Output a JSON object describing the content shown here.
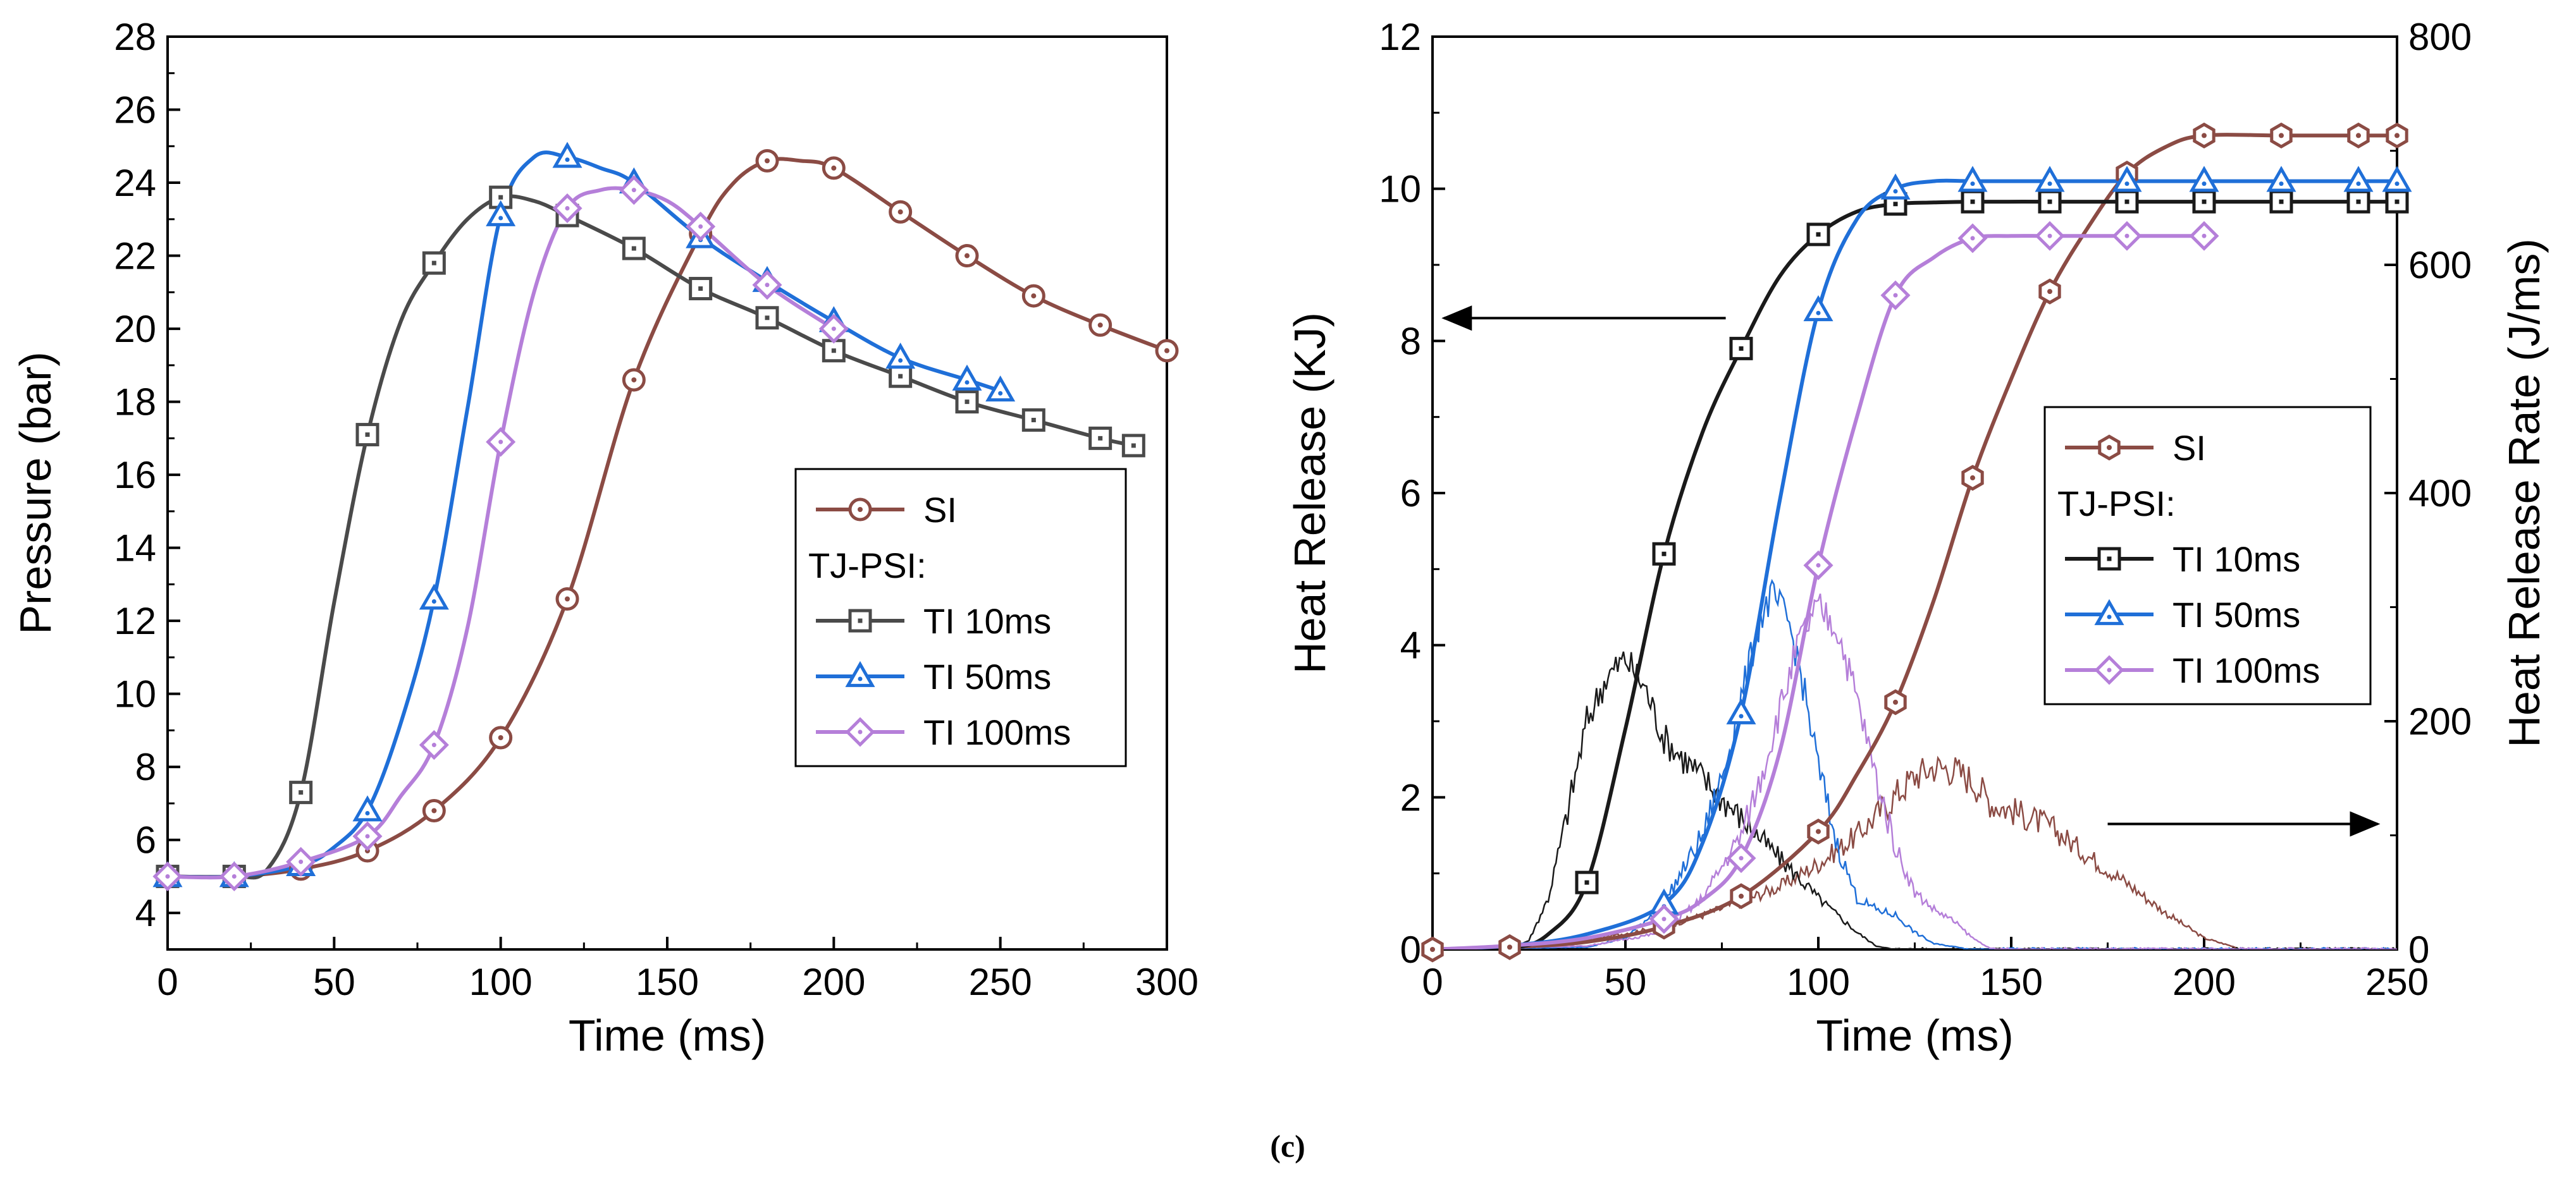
{
  "colors": {
    "SI": "#8B4B44",
    "TI10": "#1a1a1a",
    "TI10_left": "#4a4a4a",
    "TI50": "#1f6fd8",
    "TI100": "#b57fd9"
  },
  "caption": "(c)",
  "chart_data": [
    {
      "type": "line",
      "title": "",
      "xlabel": "Time (ms)",
      "ylabel": "Pressure (bar)",
      "xlim": [
        0,
        300
      ],
      "ylim": [
        3,
        28
      ],
      "xticks": [
        "0",
        "50",
        "100",
        "150",
        "200",
        "250",
        "300"
      ],
      "yticks": [
        "4",
        "6",
        "8",
        "10",
        "12",
        "14",
        "16",
        "18",
        "20",
        "22",
        "24",
        "26",
        "28"
      ],
      "legend_position": "lower-right",
      "legend": {
        "group_label": "TJ-PSI:",
        "entries": [
          {
            "key": "SI",
            "label": "SI"
          },
          {
            "key": "TI10",
            "label": "TI 10ms"
          },
          {
            "key": "TI50",
            "label": "TI 50ms"
          },
          {
            "key": "TI100",
            "label": "TI 100ms"
          }
        ]
      },
      "series": [
        {
          "name": "SI",
          "marker": "circle",
          "x": [
            0,
            20,
            40,
            60,
            80,
            100,
            120,
            140,
            160,
            170,
            180,
            190,
            200,
            220,
            240,
            260,
            280,
            300
          ],
          "y": [
            5.0,
            5.0,
            5.2,
            5.7,
            6.8,
            8.8,
            12.6,
            18.6,
            22.6,
            24.0,
            24.6,
            24.6,
            24.4,
            23.2,
            22.0,
            20.9,
            20.1,
            19.4
          ],
          "marker_x": [
            0,
            20,
            40,
            60,
            80,
            100,
            120,
            140,
            160,
            180,
            200,
            220,
            240,
            260,
            280,
            300
          ],
          "marker_y": [
            5.0,
            5.0,
            5.2,
            5.7,
            6.8,
            8.8,
            12.6,
            18.6,
            22.6,
            24.6,
            24.4,
            23.2,
            22.0,
            20.9,
            20.1,
            19.4
          ]
        },
        {
          "name": "TI 10ms",
          "marker": "square",
          "x": [
            0,
            20,
            30,
            40,
            50,
            60,
            70,
            80,
            90,
            100,
            110,
            120,
            140,
            160,
            180,
            200,
            220,
            240,
            260,
            280,
            290
          ],
          "y": [
            5.0,
            5.0,
            5.2,
            7.3,
            12.5,
            17.1,
            20.2,
            21.8,
            23.0,
            23.6,
            23.5,
            23.1,
            22.2,
            21.1,
            20.3,
            19.4,
            18.7,
            18.0,
            17.5,
            17.0,
            16.8
          ],
          "marker_x": [
            0,
            20,
            40,
            60,
            80,
            100,
            120,
            140,
            160,
            180,
            200,
            220,
            240,
            260,
            280,
            290
          ],
          "marker_y": [
            5.0,
            5.0,
            7.3,
            17.1,
            21.8,
            23.6,
            23.1,
            22.2,
            21.1,
            20.3,
            19.4,
            18.7,
            18.0,
            17.5,
            17.0,
            16.8
          ]
        },
        {
          "name": "TI 50ms",
          "marker": "triangle",
          "x": [
            0,
            20,
            40,
            50,
            60,
            70,
            80,
            90,
            100,
            110,
            120,
            130,
            140,
            160,
            180,
            200,
            220,
            240,
            250
          ],
          "y": [
            5.0,
            5.0,
            5.3,
            5.8,
            6.8,
            9.2,
            12.6,
            17.8,
            23.1,
            24.7,
            24.7,
            24.4,
            24.0,
            22.5,
            21.3,
            20.2,
            19.2,
            18.6,
            18.3
          ],
          "marker_x": [
            0,
            20,
            40,
            60,
            80,
            100,
            120,
            140,
            160,
            180,
            200,
            220,
            240,
            250
          ],
          "marker_y": [
            5.0,
            5.0,
            5.3,
            6.8,
            12.6,
            23.1,
            24.7,
            24.0,
            22.5,
            21.3,
            20.2,
            19.2,
            18.6,
            18.3
          ]
        },
        {
          "name": "TI 100ms",
          "marker": "diamond",
          "x": [
            0,
            20,
            40,
            60,
            70,
            80,
            90,
            100,
            110,
            120,
            130,
            140,
            150,
            160,
            180,
            200
          ],
          "y": [
            5.0,
            5.0,
            5.4,
            6.1,
            7.2,
            8.6,
            11.8,
            16.9,
            21.0,
            23.3,
            23.8,
            23.8,
            23.5,
            22.8,
            21.2,
            20.0
          ],
          "marker_x": [
            0,
            20,
            40,
            60,
            80,
            100,
            120,
            140,
            160,
            180,
            200
          ],
          "marker_y": [
            5.0,
            5.0,
            5.4,
            6.1,
            8.6,
            16.9,
            23.3,
            23.8,
            22.8,
            21.2,
            20.0
          ]
        }
      ]
    },
    {
      "type": "line",
      "title": "",
      "xlabel": "Time (ms)",
      "ylabel": "Heat Release (KJ)",
      "y2label": "Heat Release Rate (J/ms)",
      "xlim": [
        0,
        250
      ],
      "ylim": [
        0,
        12
      ],
      "y2lim": [
        0,
        800
      ],
      "xticks": [
        "0",
        "50",
        "100",
        "150",
        "200",
        "250"
      ],
      "yticks": [
        "0",
        "2",
        "4",
        "6",
        "8",
        "10",
        "12"
      ],
      "y2ticks": [
        "0",
        "200",
        "400",
        "600",
        "800"
      ],
      "legend_position": "center-right",
      "legend": {
        "group_label": "TJ-PSI:",
        "entries": [
          {
            "key": "SI",
            "label": "SI"
          },
          {
            "key": "TI10",
            "label": "TI 10ms"
          },
          {
            "key": "TI50",
            "label": "TI 50ms"
          },
          {
            "key": "TI100",
            "label": "TI 100ms"
          }
        ]
      },
      "annotations": [
        {
          "type": "arrow",
          "direction": "left",
          "axis": "left",
          "from": [
            76,
            8.3
          ],
          "to": [
            3,
            8.3
          ]
        },
        {
          "type": "arrow",
          "direction": "right",
          "axis": "right",
          "from": [
            175,
            110
          ],
          "to": [
            245,
            110
          ]
        }
      ],
      "series": [
        {
          "name": "SI",
          "marker": "hexagon",
          "axis": "left",
          "x": [
            0,
            20,
            40,
            60,
            80,
            100,
            110,
            120,
            130,
            140,
            150,
            160,
            170,
            180,
            190,
            200,
            220,
            240,
            250
          ],
          "y": [
            0,
            0.03,
            0.1,
            0.3,
            0.7,
            1.55,
            2.3,
            3.25,
            4.6,
            6.2,
            7.5,
            8.65,
            9.5,
            10.2,
            10.55,
            10.7,
            10.7,
            10.7,
            10.7
          ],
          "marker_x": [
            0,
            20,
            60,
            80,
            100,
            120,
            140,
            160,
            180,
            200,
            220,
            240,
            250
          ],
          "marker_y": [
            0,
            0.03,
            0.3,
            0.7,
            1.55,
            3.25,
            6.2,
            8.65,
            10.2,
            10.7,
            10.7,
            10.7,
            10.7
          ]
        },
        {
          "name": "TI 10ms",
          "marker": "square",
          "axis": "left",
          "x": [
            0,
            20,
            30,
            40,
            50,
            60,
            70,
            80,
            90,
            100,
            110,
            120,
            130,
            140,
            160,
            180,
            200,
            220,
            240,
            250
          ],
          "y": [
            0,
            0.02,
            0.2,
            0.88,
            2.9,
            5.2,
            6.8,
            7.9,
            8.85,
            9.4,
            9.7,
            9.8,
            9.82,
            9.83,
            9.83,
            9.83,
            9.83,
            9.83,
            9.83,
            9.83
          ],
          "marker_x": [
            40,
            60,
            80,
            100,
            120,
            140,
            160,
            180,
            200,
            220,
            240,
            250
          ],
          "marker_y": [
            0.88,
            5.2,
            7.9,
            9.4,
            9.8,
            9.83,
            9.83,
            9.83,
            9.83,
            9.83,
            9.83,
            9.83
          ]
        },
        {
          "name": "TI 50ms",
          "marker": "triangle",
          "axis": "left",
          "x": [
            0,
            20,
            40,
            60,
            70,
            80,
            90,
            100,
            110,
            120,
            130,
            140,
            160,
            180,
            200,
            220,
            240,
            250
          ],
          "y": [
            0,
            0.05,
            0.2,
            0.6,
            1.4,
            3.1,
            5.9,
            8.4,
            9.6,
            10.0,
            10.1,
            10.1,
            10.1,
            10.1,
            10.1,
            10.1,
            10.1,
            10.1
          ],
          "marker_x": [
            60,
            80,
            100,
            120,
            140,
            160,
            180,
            200,
            220,
            240,
            250
          ],
          "marker_y": [
            0.6,
            3.1,
            8.4,
            10.0,
            10.1,
            10.1,
            10.1,
            10.1,
            10.1,
            10.1,
            10.1
          ]
        },
        {
          "name": "TI 100ms",
          "marker": "diamond",
          "axis": "left",
          "x": [
            0,
            20,
            40,
            60,
            70,
            80,
            90,
            100,
            110,
            120,
            130,
            140,
            150,
            160,
            180,
            200
          ],
          "y": [
            0,
            0.05,
            0.15,
            0.4,
            0.65,
            1.2,
            2.6,
            5.05,
            7.0,
            8.6,
            9.1,
            9.35,
            9.38,
            9.38,
            9.38,
            9.38
          ],
          "marker_x": [
            60,
            80,
            100,
            120,
            140,
            160,
            180,
            200
          ],
          "marker_y": [
            0.4,
            1.2,
            5.05,
            8.6,
            9.35,
            9.38,
            9.38,
            9.38
          ]
        },
        {
          "name": "SI rate",
          "axis": "right",
          "line_only": true,
          "x": [
            0,
            20,
            40,
            60,
            70,
            80,
            90,
            100,
            110,
            120,
            125,
            130,
            135,
            140,
            145,
            150,
            160,
            170,
            180,
            190,
            200,
            210
          ],
          "y": [
            0,
            3,
            8,
            20,
            30,
            42,
            55,
            75,
            100,
            135,
            152,
            160,
            158,
            148,
            128,
            122,
            108,
            82,
            58,
            32,
            10,
            0
          ]
        },
        {
          "name": "TI 10ms rate",
          "axis": "right",
          "line_only": true,
          "x": [
            0,
            20,
            25,
            30,
            35,
            40,
            45,
            50,
            55,
            60,
            70,
            80,
            90,
            100,
            110,
            115,
            120,
            250
          ],
          "y": [
            0,
            0,
            8,
            45,
            120,
            200,
            238,
            255,
            230,
            185,
            150,
            115,
            80,
            45,
            15,
            3,
            0,
            0
          ]
        },
        {
          "name": "TI 50ms rate",
          "axis": "right",
          "line_only": true,
          "x": [
            0,
            40,
            50,
            60,
            70,
            75,
            80,
            85,
            88,
            92,
            95,
            100,
            105,
            110,
            115,
            120,
            125,
            130,
            140,
            250
          ],
          "y": [
            0,
            2,
            10,
            40,
            100,
            150,
            220,
            290,
            310,
            290,
            250,
            160,
            90,
            45,
            35,
            30,
            15,
            5,
            0,
            0
          ]
        },
        {
          "name": "TI 100ms rate",
          "axis": "right",
          "line_only": true,
          "x": [
            0,
            40,
            60,
            70,
            80,
            85,
            90,
            95,
            100,
            105,
            110,
            115,
            120,
            125,
            130,
            135,
            140,
            145,
            250
          ],
          "y": [
            0,
            3,
            15,
            45,
            100,
            150,
            210,
            270,
            300,
            280,
            220,
            150,
            90,
            50,
            35,
            25,
            10,
            0,
            0
          ]
        }
      ]
    }
  ]
}
